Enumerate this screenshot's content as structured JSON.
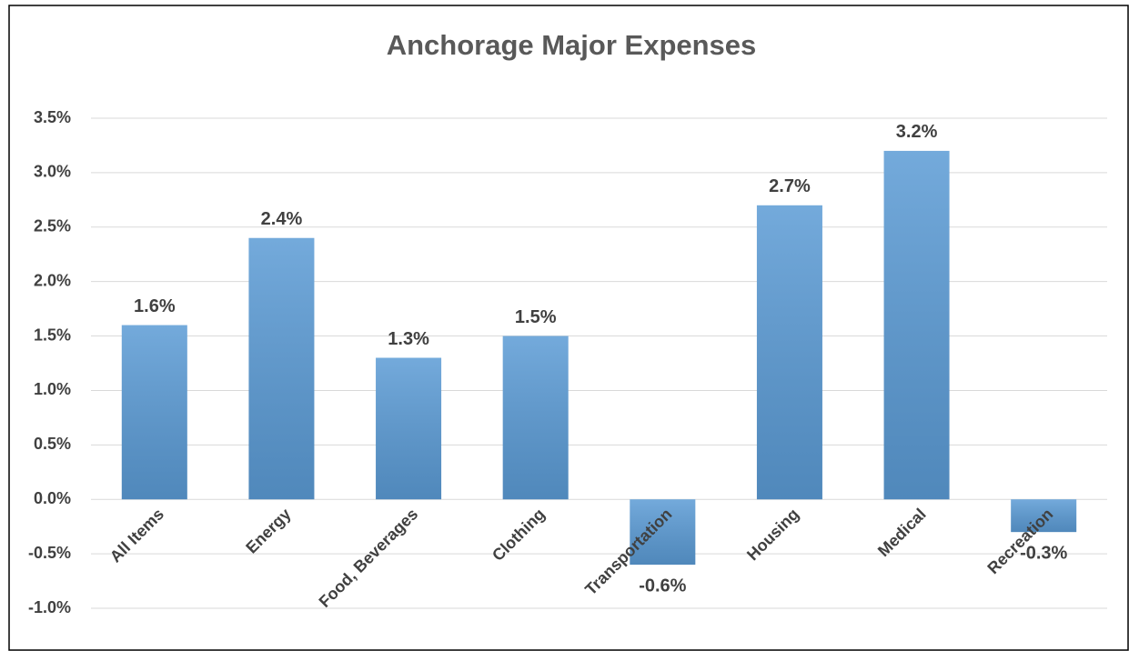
{
  "chart_data": {
    "type": "bar",
    "title": "Anchorage Major Expenses",
    "categories": [
      "All Items",
      "Energy",
      "Food, Beverages",
      "Clothing",
      "Transportation",
      "Housing",
      "Medical",
      "Recreation"
    ],
    "values": [
      1.6,
      2.4,
      1.3,
      1.5,
      -0.6,
      2.7,
      3.2,
      -0.3
    ],
    "value_labels": [
      "1.6%",
      "2.4%",
      "1.3%",
      "1.5%",
      "-0.6%",
      "2.7%",
      "3.2%",
      "-0.3%"
    ],
    "color": "#5b9bd5",
    "ylim": [
      -1.0,
      3.5
    ],
    "yticks": [
      {
        "value": -1.0,
        "label": "-1.0%"
      },
      {
        "value": -0.5,
        "label": "-0.5%"
      },
      {
        "value": 0.0,
        "label": "0.0%"
      },
      {
        "value": 0.5,
        "label": "0.5%"
      },
      {
        "value": 1.0,
        "label": "1.0%"
      },
      {
        "value": 1.5,
        "label": "1.5%"
      },
      {
        "value": 2.0,
        "label": "2.0%"
      },
      {
        "value": 2.5,
        "label": "2.5%"
      },
      {
        "value": 3.0,
        "label": "3.0%"
      },
      {
        "value": 3.5,
        "label": "3.5%"
      }
    ],
    "grid": true
  }
}
